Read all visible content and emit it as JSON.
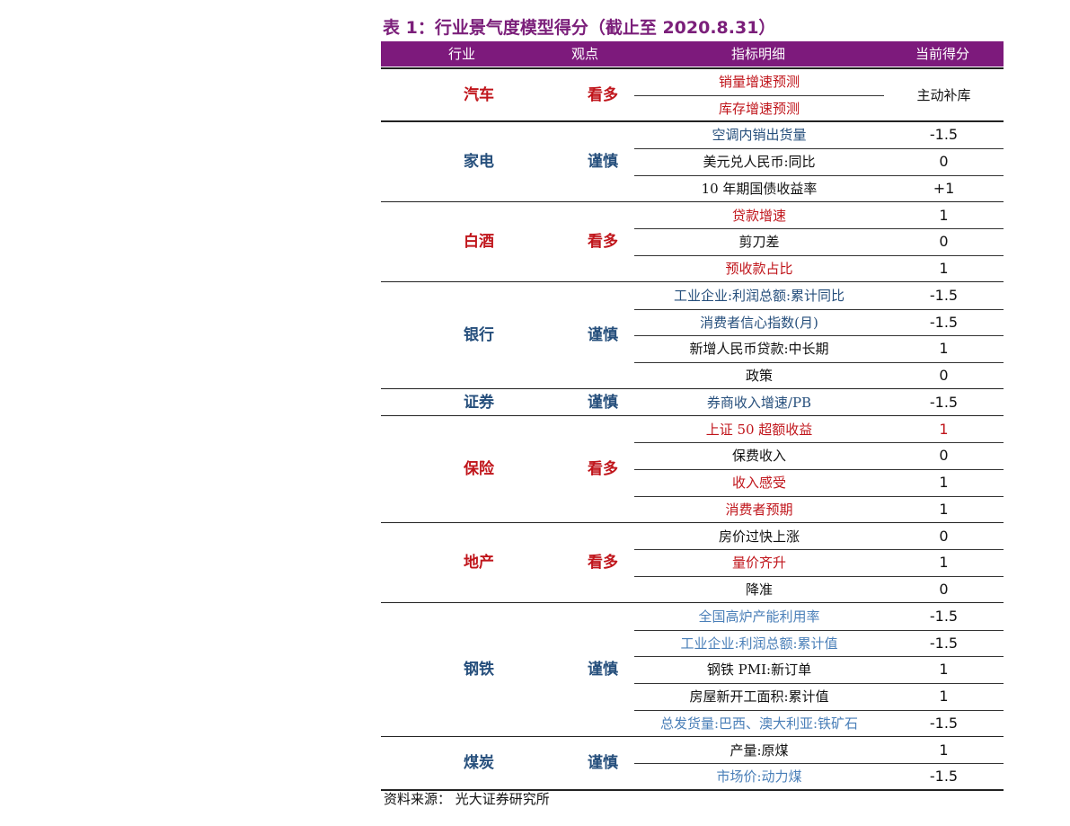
{
  "title": "表 1：行业景气度模型得分（截止至 2020.8.31）",
  "headers": {
    "industry": "行业",
    "view": "观点",
    "indicator": "指标明细",
    "score": "当前得分"
  },
  "colors": {
    "red": "#c0151b",
    "blue": "#264f7c",
    "lightblue": "#4a7fb8",
    "black": "#111111",
    "header_bg": "#7d1a7c"
  },
  "groups": [
    {
      "industry": "汽车",
      "view": "看多",
      "color": "red",
      "merged_score": "主动补库",
      "rows": [
        {
          "indicator": "销量增速预测",
          "score": "",
          "color": "red"
        },
        {
          "indicator": "库存增速预测",
          "score": "",
          "color": "red"
        }
      ]
    },
    {
      "industry": "家电",
      "view": "谨慎",
      "color": "blue",
      "rows": [
        {
          "indicator": "空调内销出货量",
          "score": "-1.5",
          "color": "blue"
        },
        {
          "indicator": "美元兑人民币:同比",
          "score": "0",
          "color": "black"
        },
        {
          "indicator": "10 年期国债收益率",
          "score": "+1",
          "color": "black"
        }
      ]
    },
    {
      "industry": "白酒",
      "view": "看多",
      "color": "red",
      "rows": [
        {
          "indicator": "贷款增速",
          "score": "1",
          "color": "red"
        },
        {
          "indicator": "剪刀差",
          "score": "0",
          "color": "black"
        },
        {
          "indicator": "预收款占比",
          "score": "1",
          "color": "red"
        }
      ]
    },
    {
      "industry": "银行",
      "view": "谨慎",
      "color": "blue",
      "rows": [
        {
          "indicator": "工业企业:利润总额:累计同比",
          "score": "-1.5",
          "color": "blue"
        },
        {
          "indicator": "消费者信心指数(月)",
          "score": "-1.5",
          "color": "blue"
        },
        {
          "indicator": "新增人民币贷款:中长期",
          "score": "1",
          "color": "black"
        },
        {
          "indicator": "政策",
          "score": "0",
          "color": "black"
        }
      ]
    },
    {
      "industry": "证券",
      "view": "谨慎",
      "color": "blue",
      "rows": [
        {
          "indicator": "券商收入增速/PB",
          "score": "-1.5",
          "color": "blue"
        }
      ]
    },
    {
      "industry": "保险",
      "view": "看多",
      "color": "red",
      "rows": [
        {
          "indicator": "上证 50 超额收益",
          "score": "1",
          "color": "red",
          "score_color": "red"
        },
        {
          "indicator": "保费收入",
          "score": "0",
          "color": "black"
        },
        {
          "indicator": "收入感受",
          "score": "1",
          "color": "red"
        },
        {
          "indicator": "消费者预期",
          "score": "1",
          "color": "red"
        }
      ]
    },
    {
      "industry": "地产",
      "view": "看多",
      "color": "red",
      "rows": [
        {
          "indicator": "房价过快上涨",
          "score": "0",
          "color": "black"
        },
        {
          "indicator": "量价齐升",
          "score": "1",
          "color": "red"
        },
        {
          "indicator": "降准",
          "score": "0",
          "color": "black"
        }
      ]
    },
    {
      "industry": "钢铁",
      "view": "谨慎",
      "color": "blue",
      "rows": [
        {
          "indicator": "全国高炉产能利用率",
          "score": "-1.5",
          "color": "lightblue"
        },
        {
          "indicator": "工业企业:利润总额:累计值",
          "score": "-1.5",
          "color": "lightblue"
        },
        {
          "indicator": "钢铁 PMI:新订单",
          "score": "1",
          "color": "black"
        },
        {
          "indicator": "房屋新开工面积:累计值",
          "score": "1",
          "color": "black"
        },
        {
          "indicator": "总发货量:巴西、澳大利亚:铁矿石",
          "score": "-1.5",
          "color": "lightblue"
        }
      ]
    },
    {
      "industry": "煤炭",
      "view": "谨慎",
      "color": "blue",
      "rows": [
        {
          "indicator": "产量:原煤",
          "score": "1",
          "color": "black"
        },
        {
          "indicator": "市场价:动力煤",
          "score": "-1.5",
          "color": "lightblue"
        }
      ]
    }
  ],
  "source": "资料来源：  光大证券研究所"
}
